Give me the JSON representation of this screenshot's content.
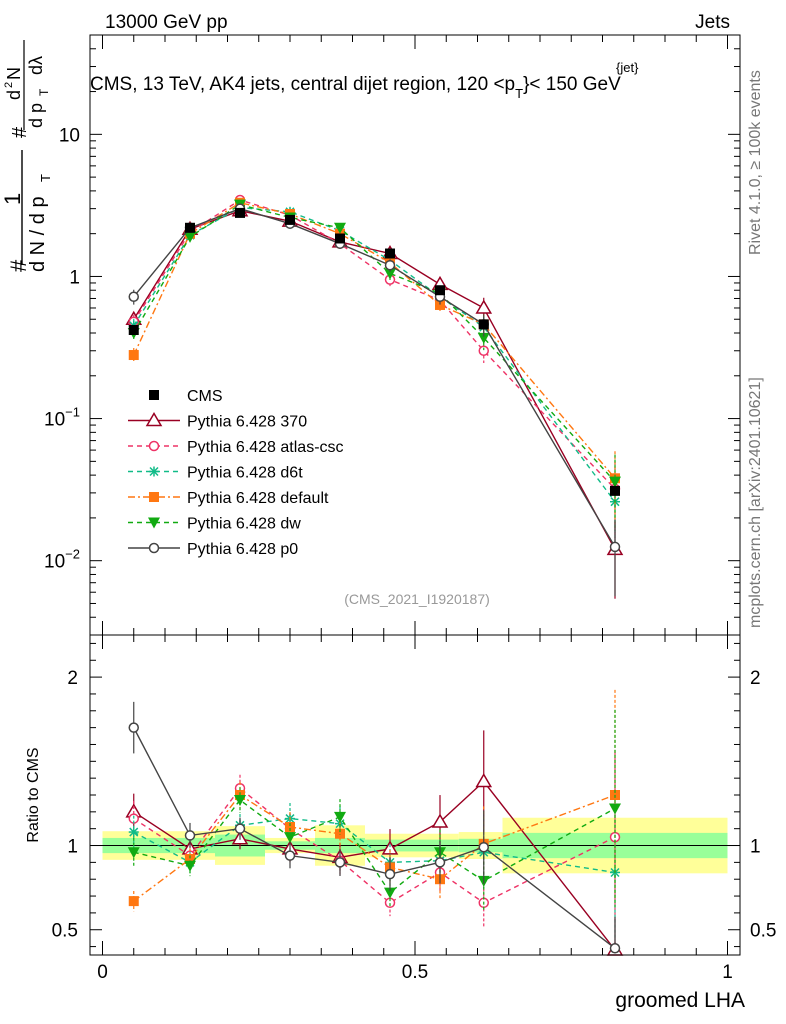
{
  "header": {
    "left": "13000 GeV pp",
    "right": "Jets"
  },
  "side_labels": {
    "rivet": "Rivet 4.1.0, ≥ 100k events",
    "source": "mcplots.cern.ch [arXiv:2401.10621]"
  },
  "chart_data": [
    {
      "type": "line",
      "panel": "main",
      "title": "CMS, 13 TeV, AK4 jets, central dijet region, 120 < p_T^{jet} < 150 GeV",
      "title_parts": {
        "main": "CMS, 13 TeV, AK4 jets, central dijet region, 120 <p",
        "sub": "T",
        "sup": "{jet}",
        "end": "}< 150 GeV"
      },
      "ylabel": "1/N dN/dp_T dλ",
      "ylabel_parts": {
        "hash": "#",
        "one": "1",
        "dN": "d N / d p",
        "T": "T",
        "d2N": "d",
        "two": "2",
        "N": "N",
        "dpT": "d p",
        "dlam": "dλ"
      },
      "yscale": "log",
      "ylim": [
        0.003,
        50
      ],
      "xlim": [
        -0.02,
        1.02
      ],
      "ytick_labels": [
        {
          "v": 10,
          "base": "10",
          "exp": ""
        },
        {
          "v": 1,
          "base": "1",
          "exp": ""
        },
        {
          "v": 0.1,
          "base": "10",
          "exp": "−1"
        },
        {
          "v": 0.01,
          "base": "10",
          "exp": "−2"
        }
      ],
      "watermark": "(CMS_2021_I1920187)",
      "legend_position": "middle-left",
      "bins": [
        0.05,
        0.14,
        0.22,
        0.3,
        0.38,
        0.46,
        0.54,
        0.61,
        0.82
      ],
      "series": [
        {
          "name": "CMS",
          "color": "#000000",
          "marker": "square",
          "values": [
            0.42,
            2.2,
            2.8,
            2.5,
            1.85,
            1.45,
            0.8,
            0.46,
            0.031
          ]
        },
        {
          "name": "Pythia 6.428 370",
          "color": "#990022",
          "marker": "triangle-open",
          "dash": "solid",
          "values": [
            0.5,
            2.15,
            2.9,
            2.45,
            1.75,
            1.45,
            0.88,
            0.6,
            0.012
          ]
        },
        {
          "name": "Pythia 6.428 atlas-csc",
          "color": "#ee3366",
          "marker": "circle-open",
          "dash": "dashed",
          "values": [
            0.48,
            2.05,
            3.45,
            2.7,
            1.7,
            0.95,
            0.68,
            0.3,
            0.032
          ]
        },
        {
          "name": "Pythia 6.428 d6t",
          "color": "#11bb88",
          "marker": "star",
          "dash": "dashed",
          "values": [
            0.45,
            1.95,
            3.05,
            2.85,
            2.1,
            1.3,
            0.72,
            0.44,
            0.026
          ]
        },
        {
          "name": "Pythia 6.428 default",
          "color": "#ff7711",
          "marker": "square",
          "dash": "dashdot",
          "values": [
            0.28,
            2.0,
            3.3,
            2.75,
            2.0,
            1.25,
            0.63,
            0.46,
            0.038
          ]
        },
        {
          "name": "Pythia 6.428 dw",
          "color": "#11aa11",
          "marker": "triangle-down",
          "dash": "dashed",
          "values": [
            0.4,
            1.9,
            3.2,
            2.6,
            2.2,
            1.05,
            0.76,
            0.37,
            0.036
          ]
        },
        {
          "name": "Pythia 6.428 p0",
          "color": "#444444",
          "marker": "circle-open",
          "dash": "solid",
          "values": [
            0.72,
            2.2,
            3.0,
            2.35,
            1.7,
            1.2,
            0.72,
            0.46,
            0.0125
          ]
        }
      ]
    },
    {
      "type": "line",
      "panel": "ratio",
      "ylabel": "Ratio to CMS",
      "xlabel": "groomed LHA",
      "ylim": [
        0.35,
        2.25
      ],
      "xlim": [
        -0.02,
        1.02
      ],
      "yticks": [
        0.5,
        1,
        2
      ],
      "ytick_labels": [
        "0.5",
        "1",
        "2"
      ],
      "xticks": [
        0,
        0.5,
        1
      ],
      "xtick_labels": [
        "0",
        "0.5",
        "1"
      ],
      "bin_edges": [
        0.0,
        0.18,
        0.26,
        0.34,
        0.42,
        0.5,
        0.57,
        0.64,
        1.0
      ],
      "uncertainty_stat_syst": [
        0.085,
        0.115,
        0.045,
        0.12,
        0.07,
        0.07,
        0.08,
        0.165,
        0.18
      ],
      "uncertainty_stat": [
        0.045,
        0.065,
        0.025,
        0.045,
        0.035,
        0.035,
        0.04,
        0.075,
        0.08
      ],
      "series": [
        {
          "name": "Pythia 6.428 370",
          "values": [
            1.2,
            0.98,
            1.04,
            0.98,
            0.93,
            0.98,
            1.14,
            1.38,
            0.38
          ]
        },
        {
          "name": "Pythia 6.428 atlas-csc",
          "values": [
            1.16,
            0.94,
            1.34,
            1.1,
            0.91,
            0.66,
            0.84,
            0.66,
            1.05
          ]
        },
        {
          "name": "Pythia 6.428 d6t",
          "values": [
            1.08,
            0.9,
            1.12,
            1.16,
            1.13,
            0.9,
            0.91,
            0.96,
            0.84
          ]
        },
        {
          "name": "Pythia 6.428 default",
          "values": [
            0.67,
            0.92,
            1.3,
            1.11,
            1.07,
            0.87,
            0.8,
            1.01,
            1.3
          ]
        },
        {
          "name": "Pythia 6.428 dw",
          "values": [
            0.96,
            0.88,
            1.27,
            1.05,
            1.17,
            0.72,
            0.96,
            0.79,
            1.22
          ]
        },
        {
          "name": "Pythia 6.428 p0",
          "values": [
            1.7,
            1.06,
            1.1,
            0.94,
            0.9,
            0.83,
            0.9,
            0.99,
            0.39
          ]
        }
      ]
    }
  ]
}
